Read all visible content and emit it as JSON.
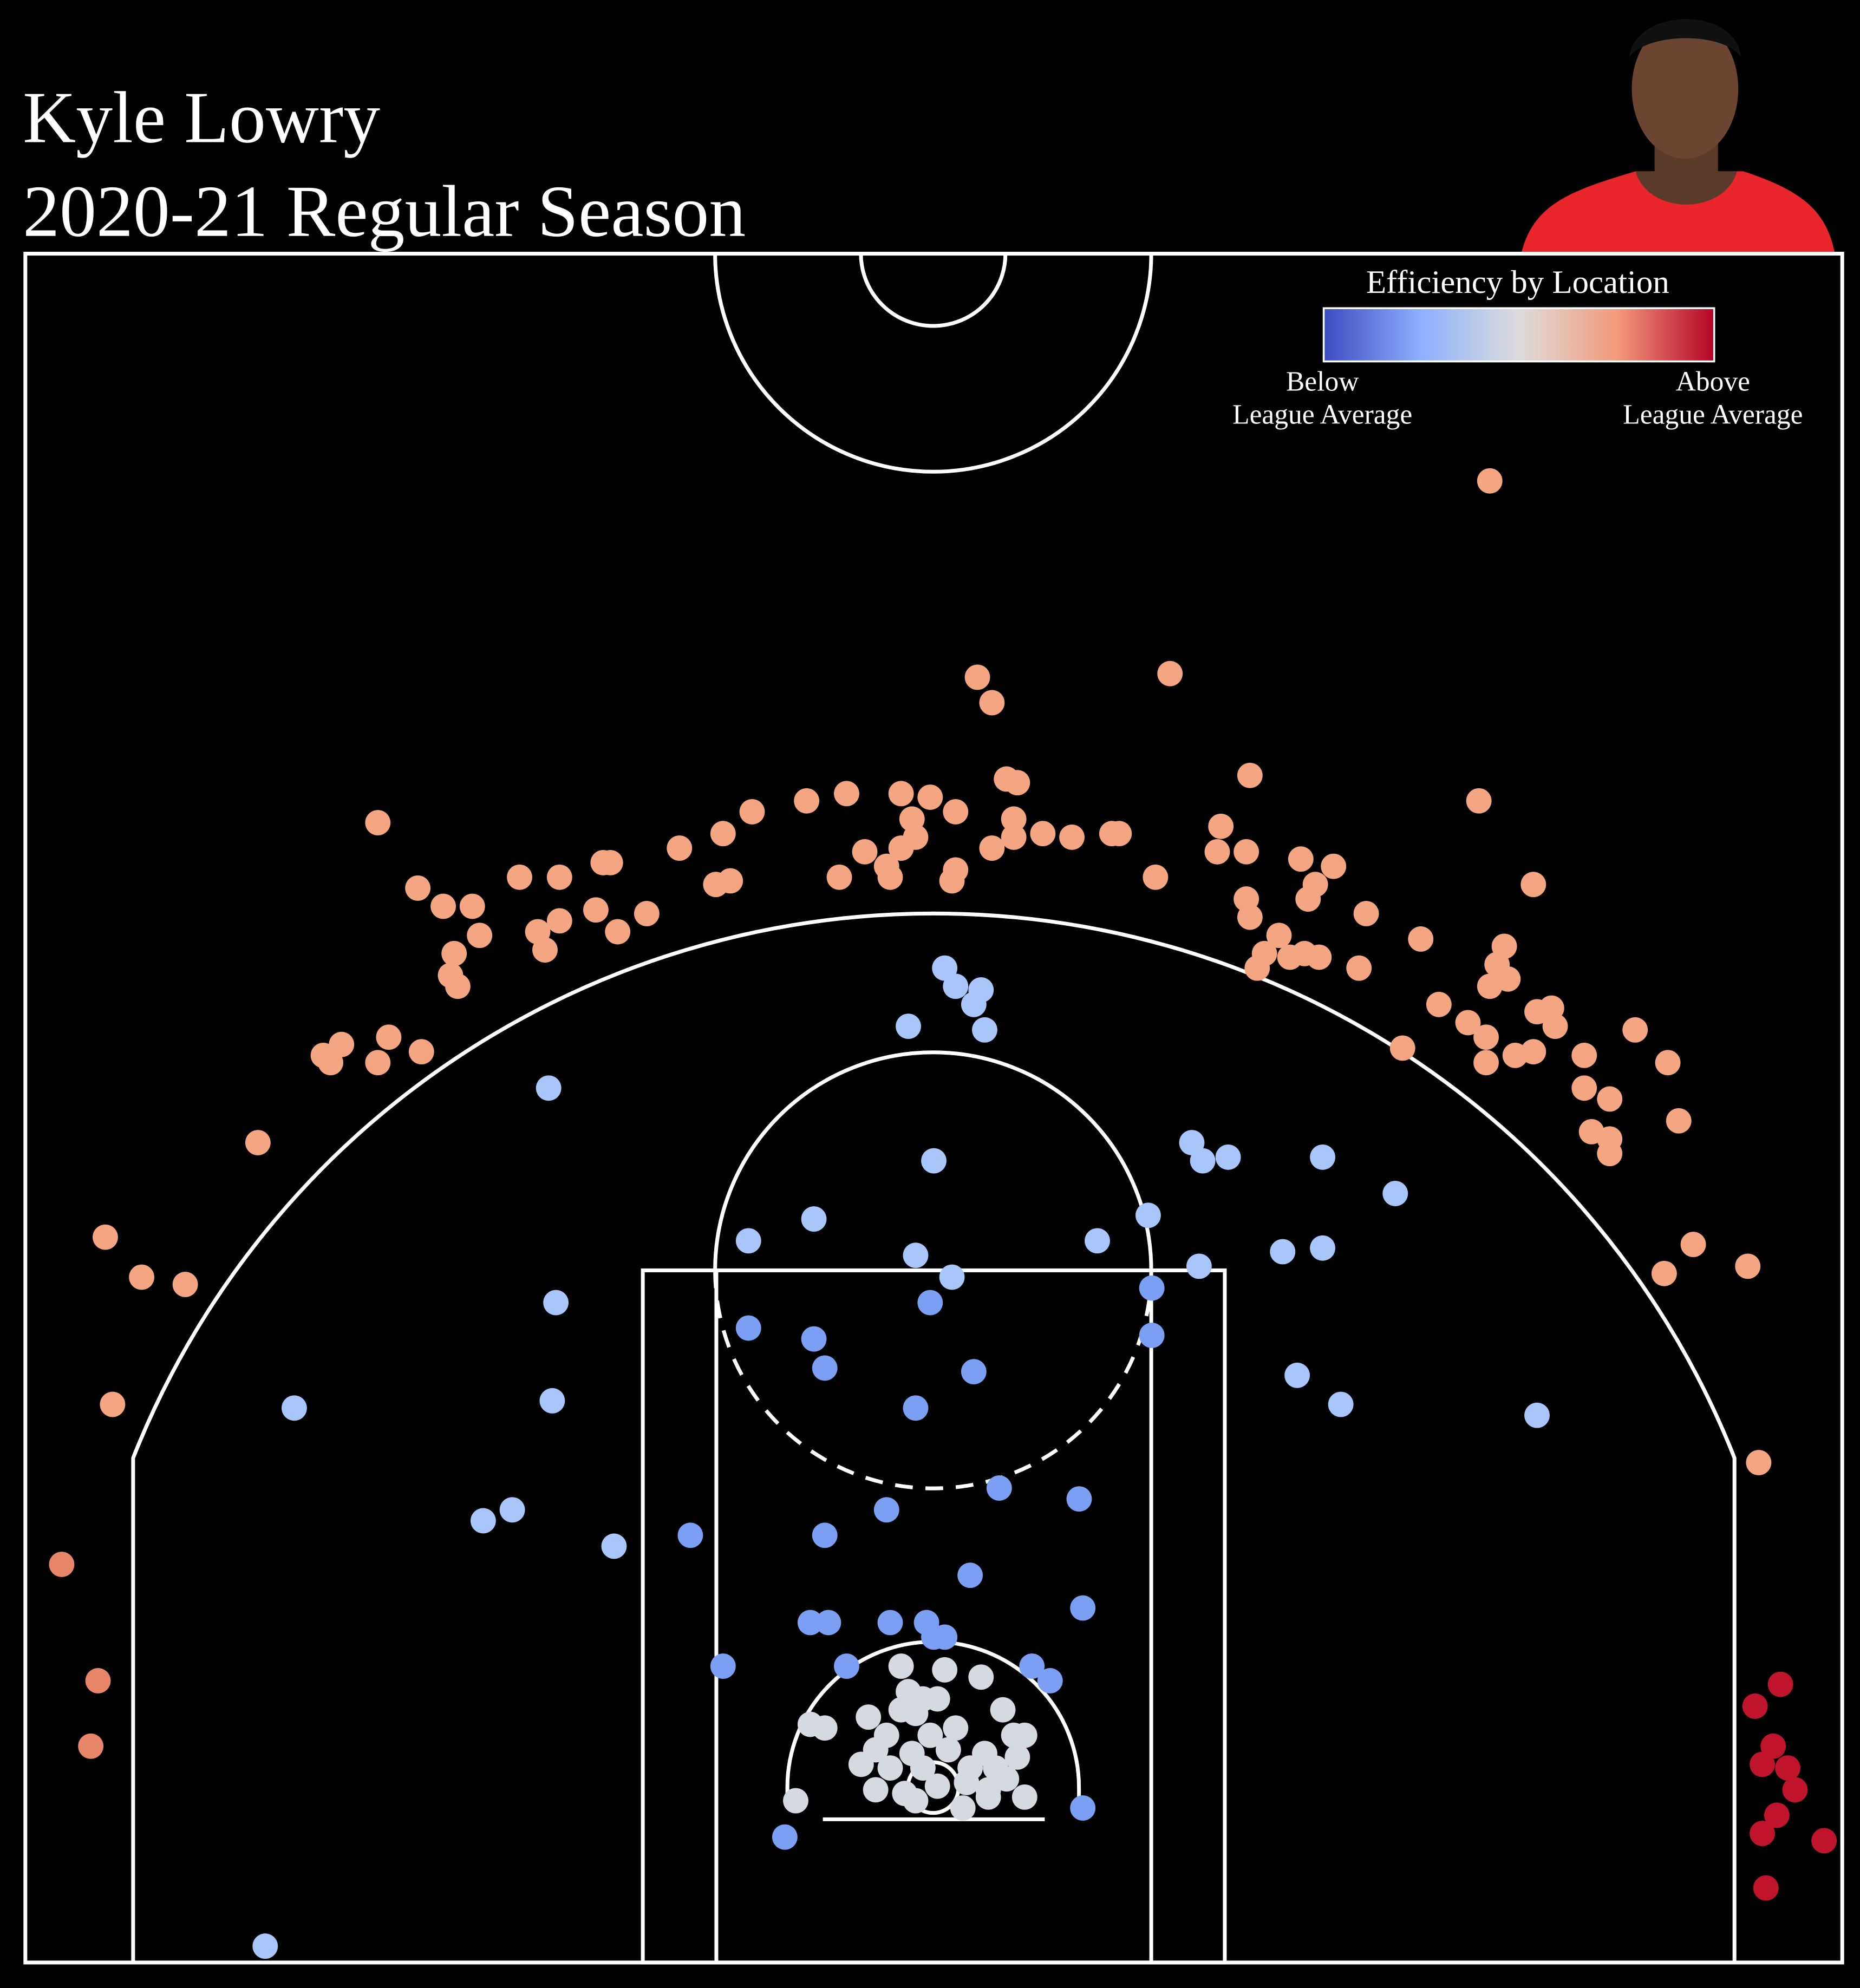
{
  "chart_data": {
    "type": "scatter",
    "title": [
      "Kyle Lowry",
      "2020-21 Regular Season"
    ],
    "xlim": [
      -250,
      250
    ],
    "ylim": [
      -47.5,
      422.5
    ],
    "colorbar": {
      "title": "Efficiency by Location",
      "colors": [
        "#3b4cc0",
        "#8db0fe",
        "#dddcdc",
        "#f49a7b",
        "#b40426"
      ],
      "low_label": [
        "Below",
        "League Average"
      ],
      "high_label": [
        "Above",
        "League Average"
      ]
    },
    "series": [
      {
        "color": "#f4a582",
        "x": [
          153,
          12,
          16,
          65,
          87,
          150,
          -153,
          20,
          23,
          -9,
          -1,
          -24,
          -35,
          -50,
          6,
          -6,
          22,
          30,
          38,
          49,
          51,
          79,
          78,
          86,
          -58,
          -70,
          -5,
          -9,
          -19,
          16,
          22,
          -13,
          -12,
          6,
          5,
          -26,
          -56,
          -60,
          -91,
          -89,
          -103,
          -114,
          -142,
          -135,
          -127,
          -125,
          -132,
          -133,
          -131,
          -103,
          -93,
          -87,
          -79,
          -109,
          -107,
          61,
          101,
          110,
          105,
          103,
          86,
          87,
          119,
          165,
          134,
          95,
          91,
          89,
          98,
          102,
          106,
          117,
          157,
          155,
          153,
          158,
          139,
          147,
          152,
          166,
          170,
          171,
          152,
          160,
          165,
          129,
          179,
          193,
          202,
          179,
          186,
          205,
          181,
          186,
          186,
          -168,
          -163,
          -166,
          -150,
          -153,
          -141,
          -186,
          -228,
          -218,
          -206,
          -226,
          209,
          201,
          224,
          227
        ],
        "y": [
          360,
          306,
          299,
          307,
          279,
          272,
          266,
          278,
          277,
          274,
          273,
          274,
          272,
          269,
          269,
          267,
          267,
          263,
          262,
          263,
          263,
          265,
          258,
          258,
          263,
          259,
          262,
          259,
          258,
          259,
          262,
          254,
          251,
          253,
          250,
          251,
          250,
          249,
          255,
          255,
          251,
          251,
          248,
          243,
          243,
          235,
          230,
          224,
          221,
          239,
          242,
          236,
          241,
          236,
          231,
          251,
          256,
          254,
          249,
          245,
          245,
          240,
          241,
          249,
          234,
          235,
          230,
          226,
          229,
          230,
          229,
          226,
          232,
          227,
          221,
          223,
          216,
          211,
          207,
          214,
          215,
          210,
          200,
          202,
          203,
          204,
          202,
          209,
          200,
          193,
          190,
          184,
          181,
          175,
          179,
          202,
          205,
          200,
          207,
          200,
          203,
          178,
          152,
          141,
          139,
          106,
          150,
          142,
          144,
          90
        ]
      },
      {
        "color": "#e8866a",
        "x": [
          -240,
          -230,
          -232
        ],
        "y": [
          62,
          30,
          12
        ]
      },
      {
        "color": "#a9c6fb",
        "x": [
          3,
          6,
          13,
          11,
          14,
          -7,
          -106,
          0,
          71,
          74,
          81,
          107,
          127,
          -51,
          -33,
          -5,
          5,
          45,
          59,
          73,
          96,
          107,
          -104,
          -105,
          -176,
          100,
          112,
          166,
          -124,
          -116,
          -88,
          -184
        ],
        "y": [
          226,
          221,
          220,
          216,
          209,
          210,
          193,
          173,
          178,
          173,
          174,
          174,
          164,
          151,
          157,
          147,
          141,
          151,
          158,
          144,
          148,
          149,
          134,
          107,
          105,
          114,
          106,
          103,
          74,
          77,
          67,
          -43
        ]
      },
      {
        "color": "#7b9ff2",
        "x": [
          -1,
          60,
          60,
          -51,
          -33,
          -30,
          11,
          -5,
          18,
          -13,
          40,
          -67,
          -30,
          10,
          41,
          -34,
          -29,
          -12,
          -2,
          0,
          3,
          -24,
          -58,
          27,
          32,
          41,
          -41
        ],
        "y": [
          134,
          138,
          125,
          127,
          124,
          116,
          115,
          105,
          83,
          77,
          80,
          70,
          70,
          59,
          50,
          46,
          46,
          46,
          46,
          42,
          42,
          34,
          34,
          34,
          30,
          -5,
          -13
        ]
      },
      {
        "color": "#d5d9e0",
        "x": [
          -9,
          3,
          13,
          -7,
          -3,
          1,
          -9,
          -5,
          19,
          -34,
          -30,
          -18,
          -13,
          -1,
          6,
          22,
          25,
          -16,
          -6,
          4,
          14,
          23,
          -20,
          -12,
          -3,
          10,
          17,
          -16,
          -8,
          9,
          15,
          20,
          25,
          -38,
          8,
          15,
          -5,
          1
        ],
        "y": [
          34,
          33,
          31,
          27,
          25,
          25,
          22,
          21,
          22,
          18,
          17,
          20,
          15,
          15,
          17,
          15,
          15,
          11,
          10,
          11,
          10,
          9,
          7,
          6,
          6,
          6,
          6,
          0,
          -1,
          2,
          0,
          3,
          -2,
          -3,
          -5,
          -2,
          -3,
          1
        ]
      },
      {
        "color": "#c0142d",
        "x": [
          226,
          233,
          231,
          228,
          235,
          237,
          232,
          228,
          245,
          229
        ],
        "y": [
          23,
          29,
          12,
          7,
          6,
          0,
          -7,
          -12,
          -14,
          -27
        ]
      }
    ]
  }
}
